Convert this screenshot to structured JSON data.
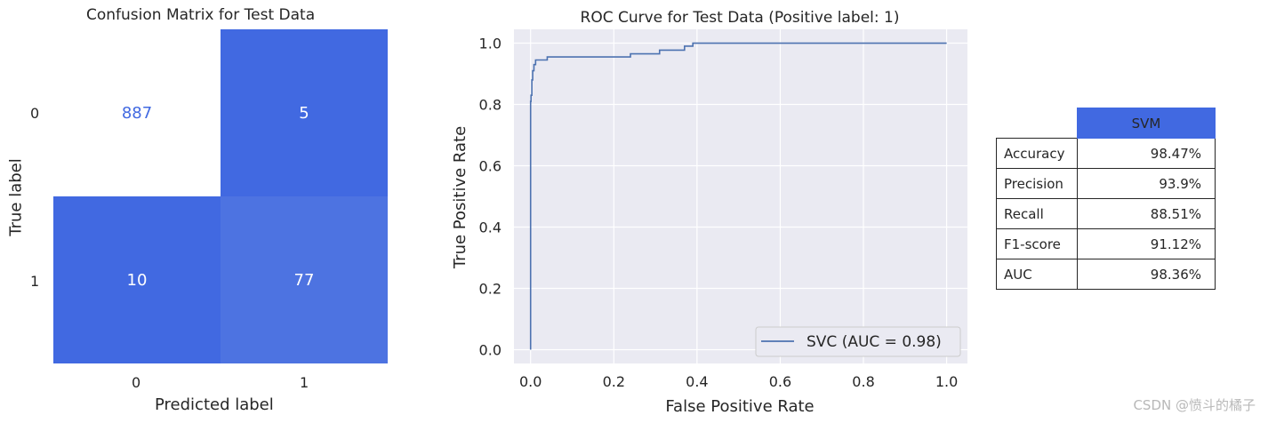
{
  "confusion_matrix": {
    "title": "Confusion Matrix for Test Data",
    "xlabel": "Predicted label",
    "ylabel": "True label",
    "x_ticks": [
      "0",
      "1"
    ],
    "y_ticks": [
      "0",
      "1"
    ],
    "cells": [
      {
        "value": "887",
        "color": "#ffffff",
        "text_color": "#4169e1"
      },
      {
        "value": "5",
        "color": "#4169e1",
        "text_color": "#ffffff"
      },
      {
        "value": "10",
        "color": "#4169e1",
        "text_color": "#ffffff"
      },
      {
        "value": "77",
        "color": "#4d73e1",
        "text_color": "#ffffff"
      }
    ]
  },
  "chart_data": [
    {
      "type": "heatmap",
      "title": "Confusion Matrix for Test Data",
      "xlabel": "Predicted label",
      "ylabel": "True label",
      "x_categories": [
        "0",
        "1"
      ],
      "y_categories": [
        "0",
        "1"
      ],
      "values": [
        [
          887,
          5
        ],
        [
          10,
          77
        ]
      ]
    },
    {
      "type": "line",
      "title": "ROC Curve for Test Data (Positive label: 1)",
      "xlabel": "False Positive Rate",
      "ylabel": "True Positive Rate",
      "xlim": [
        -0.04,
        1.05
      ],
      "ylim": [
        -0.045,
        1.045
      ],
      "xticks": [
        "0.0",
        "0.2",
        "0.4",
        "0.6",
        "0.8",
        "1.0"
      ],
      "yticks": [
        "0.0",
        "0.2",
        "0.4",
        "0.6",
        "0.8",
        "1.0"
      ],
      "grid": true,
      "legend_position": "lower-right",
      "series": [
        {
          "name": "SVC (AUC = 0.98)",
          "color": "#4c72b0",
          "x": [
            0.0,
            0.0,
            0.001,
            0.001,
            0.003,
            0.003,
            0.005,
            0.005,
            0.008,
            0.008,
            0.012,
            0.012,
            0.04,
            0.04,
            0.24,
            0.24,
            0.31,
            0.31,
            0.37,
            0.37,
            0.39,
            0.39,
            1.0
          ],
          "y": [
            0.0,
            0.81,
            0.81,
            0.83,
            0.83,
            0.88,
            0.88,
            0.91,
            0.91,
            0.93,
            0.93,
            0.945,
            0.945,
            0.955,
            0.955,
            0.965,
            0.965,
            0.977,
            0.977,
            0.99,
            0.99,
            1.0,
            1.0
          ]
        }
      ]
    },
    {
      "type": "table",
      "columns": [
        "",
        "SVM"
      ],
      "rows": [
        [
          "Accuracy",
          "98.47%"
        ],
        [
          "Precision",
          "93.9%"
        ],
        [
          "Recall",
          "88.51%"
        ],
        [
          "F1-score",
          "91.12%"
        ],
        [
          "AUC",
          "98.36%"
        ]
      ]
    }
  ],
  "roc": {
    "title": "ROC Curve for Test Data (Positive label: 1)",
    "xlabel": "False Positive Rate",
    "ylabel": "True Positive Rate",
    "legend_label": "SVC (AUC = 0.98)"
  },
  "metrics_table": {
    "header": "SVM",
    "rows": [
      {
        "label": "Accuracy",
        "value": "98.47%"
      },
      {
        "label": "Precision",
        "value": "93.9%"
      },
      {
        "label": "Recall",
        "value": "88.51%"
      },
      {
        "label": "F1-score",
        "value": "91.12%"
      },
      {
        "label": "AUC",
        "value": "98.36%"
      }
    ]
  },
  "watermark": "CSDN @愤斗的橘子"
}
